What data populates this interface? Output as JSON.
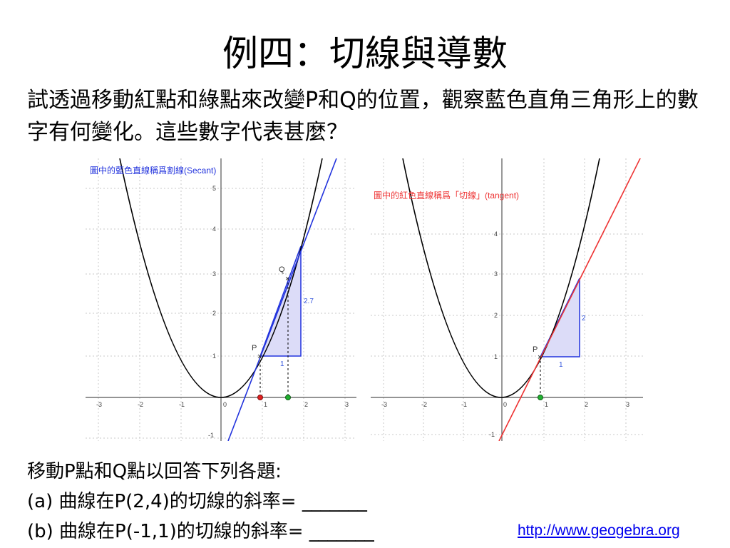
{
  "title": "例四：切線與導數",
  "intro": "試透過移動紅點和綠點來改變P和Q的位置，觀察藍色直角三角形上的數字有何變化。這些數字代表甚麼？",
  "left_graph": {
    "note": "圖中的藍色直線稱爲割線(Secant)",
    "point_p_label": "P",
    "point_q_label": "Q",
    "run_label": "1",
    "rise_label": "2.7",
    "x_ticks": [
      "-3",
      "-2",
      "-1",
      "0",
      "1",
      "2",
      "3"
    ],
    "y_ticks": [
      "-1",
      "1",
      "2",
      "3",
      "4",
      "5"
    ],
    "colors": {
      "curve": "#000000",
      "line": "#2233dd",
      "triangle_fill": "#dcdcf8",
      "point_p": "#e02020",
      "point_q": "#20b030"
    }
  },
  "right_graph": {
    "note": "圖中的紅色直線稱爲「切線」(tangent)",
    "point_p_label": "P",
    "run_label": "1",
    "rise_label": "2",
    "x_ticks": [
      "-3",
      "-2",
      "-1",
      "0",
      "1",
      "2",
      "3"
    ],
    "y_ticks": [
      "-1",
      "1",
      "2",
      "3",
      "4"
    ],
    "colors": {
      "curve": "#000000",
      "line": "#ee3333",
      "triangle_fill": "#dcdcf8",
      "point_p": "#20b030"
    }
  },
  "questions": {
    "heading": "移動P點和Q點以回答下列各題:",
    "a": "(a) 曲線在P(2,4)的切線的斜率= _______",
    "b": "(b) 曲線在P(-1,1)的切線的斜率= _______"
  },
  "link": "http://www.geogebra.org"
}
